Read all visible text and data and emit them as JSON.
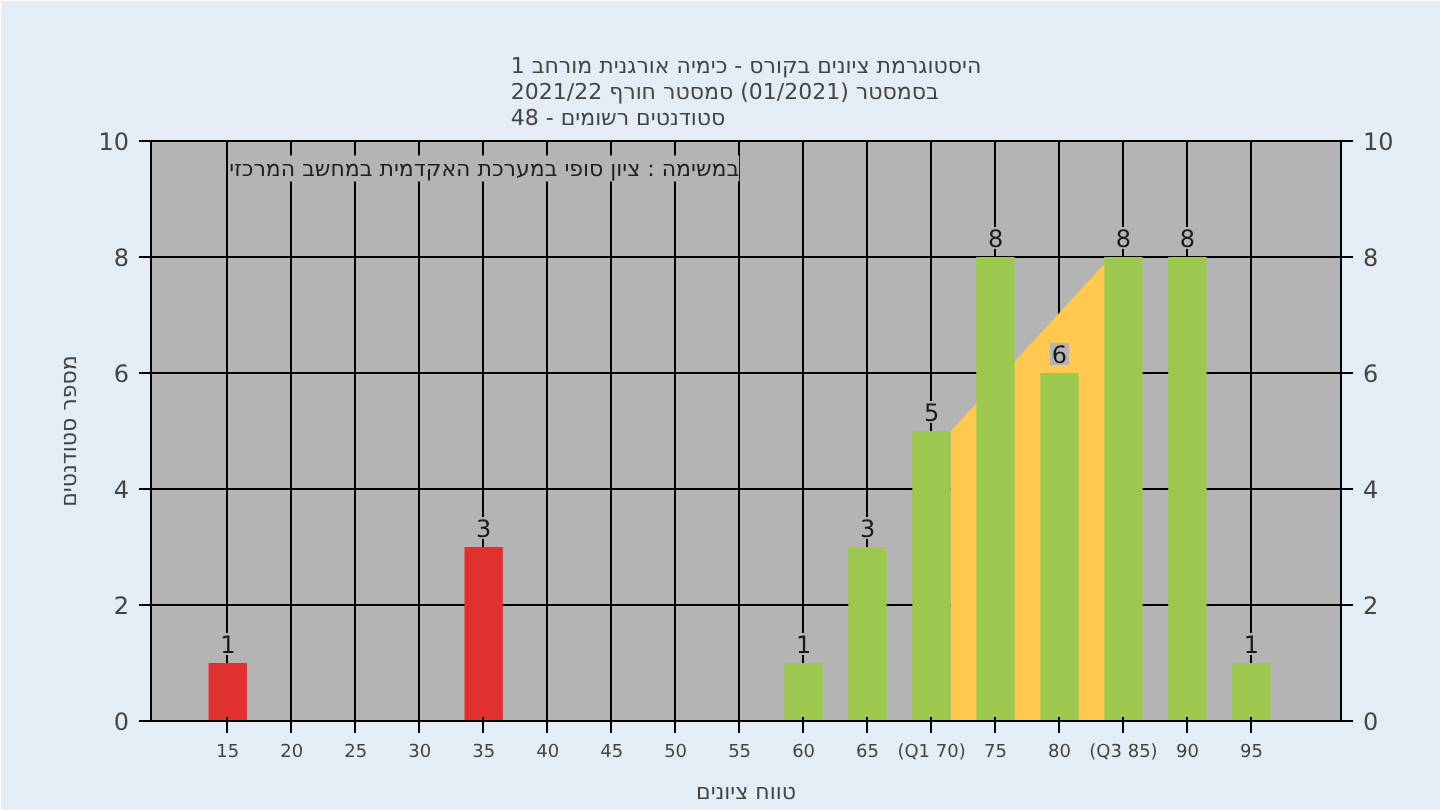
{
  "chart_data": {
    "type": "bar",
    "title": "היסטוגרמת ציונים בקורס - כימיה אורגנית מורחב 1\nבסמסטר  (01/2021)  סמסטר חורף 2021/22\nסטודנטים רשומים - 48",
    "xlabel": "טווח ציונים",
    "ylabel": "מספר סטודנטים",
    "annotations": [
      "במשימה : ציון סופי במערכת האקדמית במחשב המרכזי"
    ],
    "series": [
      {
        "type": "area",
        "color": "#ffc850",
        "x": [
          71.5,
          84
        ],
        "values": [
          5,
          8
        ],
        "value_labels": [
          null,
          null
        ]
      },
      {
        "x": [
          15,
          35,
          60,
          65,
          70,
          75,
          80,
          85,
          90,
          95
        ],
        "values": [
          1,
          3,
          1,
          3,
          5,
          8,
          6,
          8,
          8,
          1
        ],
        "colors": [
          "#e03030",
          "#e03030",
          "#9cc850",
          "#9cc850",
          "#9cc850",
          "#9cc850",
          "#9cc850",
          "#9cc850",
          "#9cc850",
          "#9cc850"
        ]
      }
    ],
    "xlim": [
      9,
      102
    ],
    "ylim": [
      0,
      10
    ],
    "y2lim": [
      0,
      10
    ],
    "xticks": [
      15,
      20,
      25,
      30,
      35,
      40,
      45,
      50,
      55,
      60,
      65,
      {
        "value": 70,
        "label": "(Q1 70)"
      },
      75,
      80,
      {
        "value": 85,
        "label": "(Q3 85)"
      },
      90,
      95
    ],
    "yticks": [
      0,
      2,
      4,
      6,
      8,
      10
    ],
    "y2ticks": [
      0,
      2,
      4,
      6,
      8,
      10
    ],
    "grid": true,
    "data_labels": true
  }
}
